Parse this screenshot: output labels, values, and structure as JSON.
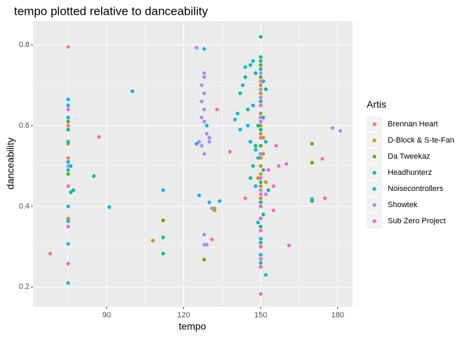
{
  "chart_data": {
    "type": "scatter",
    "title": "tempo plotted relative to danceability",
    "x_label": "tempo",
    "y_label": "danceability",
    "legend_title": "Artis",
    "legend_position": "right",
    "xlim": [
      61.3,
      185.8
    ],
    "ylim": [
      0.151,
      0.859
    ],
    "xticks": [
      90,
      120,
      150,
      180
    ],
    "yticks": [
      0.2,
      0.4,
      0.6,
      0.8
    ],
    "x_minor_grid": [
      75,
      105,
      135,
      165
    ],
    "y_minor_grid": [
      0.3,
      0.5,
      0.7
    ],
    "grid": true,
    "series": [
      {
        "name": "Brennan Heart",
        "color": "#F8766D",
        "x": [
          75,
          68,
          87,
          75,
          133,
          138,
          131,
          144,
          150,
          150,
          150,
          174,
          175,
          150,
          75
        ],
        "values": [
          0.795,
          0.283,
          0.572,
          0.52,
          0.64,
          0.535,
          0.318,
          0.42,
          0.3,
          0.45,
          0.5,
          0.518,
          0.42,
          0.35,
          0.6
        ]
      },
      {
        "name": "D-Block & S-te-Fan",
        "color": "#C49A00",
        "x": [
          75,
          75,
          108,
          132,
          132,
          150,
          150,
          150,
          150,
          150,
          150,
          150,
          150,
          150,
          150,
          150,
          150,
          150,
          151,
          151,
          149,
          152,
          150,
          170
        ],
        "values": [
          0.37,
          0.555,
          0.315,
          0.395,
          0.39,
          0.6,
          0.55,
          0.52,
          0.5,
          0.48,
          0.45,
          0.42,
          0.58,
          0.62,
          0.65,
          0.68,
          0.7,
          0.63,
          0.57,
          0.53,
          0.47,
          0.46,
          0.4,
          0.415
        ]
      },
      {
        "name": "Da Tweekaz",
        "color": "#53B400",
        "x": [
          75,
          75,
          112,
          128,
          150,
          150,
          150,
          150,
          150,
          170,
          170,
          170,
          150
        ],
        "values": [
          0.61,
          0.48,
          0.365,
          0.268,
          0.75,
          0.72,
          0.66,
          0.62,
          0.55,
          0.555,
          0.508,
          0.413,
          0.3
        ]
      },
      {
        "name": "Headhunterz",
        "color": "#00C094",
        "x": [
          75,
          76,
          77,
          76,
          85,
          112,
          112,
          142,
          144,
          146,
          148,
          150,
          150,
          150,
          150,
          151,
          152,
          150,
          151,
          150,
          152,
          150,
          151,
          150,
          153,
          150,
          151,
          150,
          150,
          150,
          150,
          149,
          148,
          147,
          146,
          145
        ],
        "values": [
          0.59,
          0.5,
          0.44,
          0.435,
          0.475,
          0.323,
          0.283,
          0.68,
          0.72,
          0.75,
          0.73,
          0.82,
          0.77,
          0.76,
          0.74,
          0.71,
          0.69,
          0.66,
          0.62,
          0.59,
          0.56,
          0.53,
          0.49,
          0.46,
          0.44,
          0.41,
          0.38,
          0.35,
          0.31,
          0.28,
          0.26,
          0.6,
          0.55,
          0.5,
          0.47,
          0.64
        ]
      },
      {
        "name": "Noisecontrollers",
        "color": "#00B6EB",
        "x": [
          75,
          75,
          75,
          75,
          75,
          75,
          75,
          75,
          75,
          75,
          91,
          100,
          112,
          125,
          126,
          128,
          129,
          130,
          134,
          140,
          141,
          142,
          143,
          144,
          145,
          146,
          147,
          148,
          149,
          150,
          150,
          150,
          152,
          147,
          148,
          149,
          170
        ],
        "values": [
          0.665,
          0.65,
          0.62,
          0.56,
          0.51,
          0.49,
          0.4,
          0.363,
          0.307,
          0.21,
          0.398,
          0.685,
          0.44,
          0.555,
          0.427,
          0.79,
          0.6,
          0.41,
          0.413,
          0.615,
          0.63,
          0.59,
          0.7,
          0.745,
          0.6,
          0.56,
          0.65,
          0.45,
          0.36,
          0.28,
          0.25,
          0.32,
          0.23,
          0.76,
          0.54,
          0.52,
          0.418
        ]
      },
      {
        "name": "Showtek",
        "color": "#A58AFF",
        "x": [
          125,
          126,
          127,
          128,
          128,
          128,
          127,
          128,
          127,
          128,
          129,
          130,
          130,
          127,
          128,
          128,
          128,
          129,
          131,
          150,
          150,
          150,
          150,
          150,
          150,
          150,
          152,
          178,
          181,
          75
        ],
        "values": [
          0.793,
          0.56,
          0.7,
          0.72,
          0.73,
          0.68,
          0.66,
          0.64,
          0.62,
          0.61,
          0.58,
          0.57,
          0.56,
          0.55,
          0.53,
          0.33,
          0.305,
          0.305,
          0.395,
          0.73,
          0.69,
          0.67,
          0.62,
          0.53,
          0.44,
          0.37,
          0.43,
          0.594,
          0.587,
          0.5
        ]
      },
      {
        "name": "Sub Zero Project",
        "color": "#FB61D7",
        "x": [
          75,
          75,
          75,
          75,
          150,
          150,
          150,
          150,
          150,
          150,
          150,
          150,
          150,
          150,
          150,
          150,
          150,
          155,
          155,
          157,
          160,
          161,
          156,
          153
        ],
        "values": [
          0.64,
          0.45,
          0.35,
          0.258,
          0.183,
          0.25,
          0.27,
          0.3,
          0.34,
          0.37,
          0.4,
          0.43,
          0.47,
          0.57,
          0.61,
          0.65,
          0.71,
          0.45,
          0.39,
          0.5,
          0.505,
          0.303,
          0.55,
          0.49
        ]
      }
    ]
  }
}
